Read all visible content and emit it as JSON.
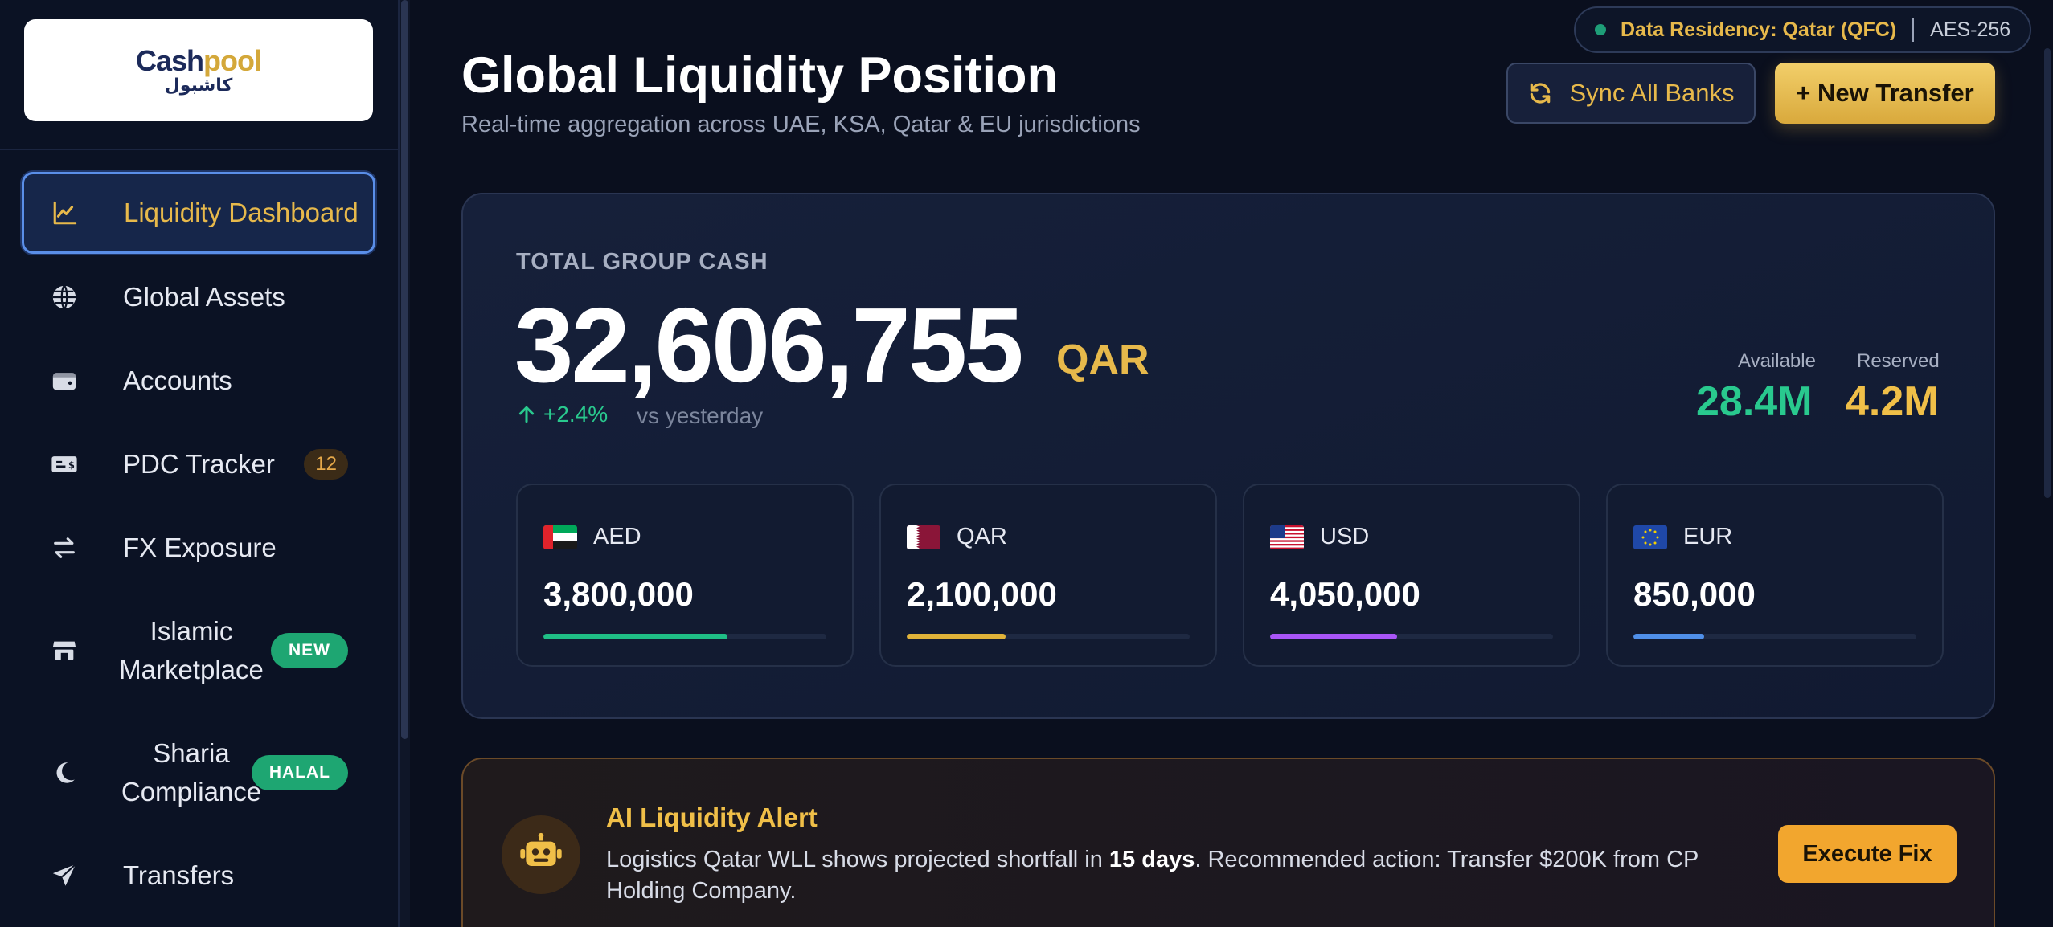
{
  "sidebar": {
    "logo": {
      "en_a": "Cash",
      "en_b": "pool",
      "ar": "كاشبول"
    },
    "items": [
      {
        "label": "Liquidity Dashboard",
        "icon": "chart-line-icon",
        "active": true
      },
      {
        "label": "Global Assets",
        "icon": "globe-icon"
      },
      {
        "label": "Accounts",
        "icon": "wallet-icon"
      },
      {
        "label": "PDC Tracker",
        "icon": "cheque-icon",
        "badge": "12"
      },
      {
        "label": "FX Exposure",
        "icon": "exchange-icon"
      },
      {
        "label": "Islamic Marketplace",
        "icon": "store-icon",
        "badge": "NEW"
      },
      {
        "label": "Sharia Compliance",
        "icon": "crescent-moon-icon",
        "badge": "HALAL"
      },
      {
        "label": "Transfers",
        "icon": "paper-plane-icon"
      }
    ]
  },
  "header": {
    "residency": "Data Residency: Qatar (QFC)",
    "encryption": "AES-256",
    "title": "Global Liquidity Position",
    "subtitle": "Real-time aggregation across UAE, KSA, Qatar & EU jurisdictions",
    "sync_label": "Sync All Banks",
    "new_transfer_label": "+ New Transfer"
  },
  "cash": {
    "label": "TOTAL GROUP CASH",
    "amount": "32,606,755",
    "currency": "QAR",
    "change": "+2.4%",
    "change_suffix": "vs yesterday",
    "available_label": "Available",
    "available_value": "28.4M",
    "reserved_label": "Reserved",
    "reserved_value": "4.2M",
    "currencies": [
      {
        "code": "AED",
        "amount": "3,800,000",
        "share": 0.65,
        "color": "#1fbf86",
        "flag": "ae-flag-icon"
      },
      {
        "code": "QAR",
        "amount": "2,100,000",
        "share": 0.35,
        "color": "#e0b339",
        "flag": "qa-flag-icon"
      },
      {
        "code": "USD",
        "amount": "4,050,000",
        "share": 0.45,
        "color": "#a855f7",
        "flag": "us-flag-icon"
      },
      {
        "code": "EUR",
        "amount": "850,000",
        "share": 0.25,
        "color": "#4f8fe8",
        "flag": "eu-flag-icon"
      }
    ]
  },
  "alert": {
    "title": "AI Liquidity Alert",
    "text_before": "Logistics Qatar WLL shows projected shortfall in ",
    "text_bold": "15 days",
    "text_after": ". Recommended action: Transfer $200K from CP Holding Company.",
    "action_label": "Execute Fix",
    "icon": "robot-icon"
  }
}
